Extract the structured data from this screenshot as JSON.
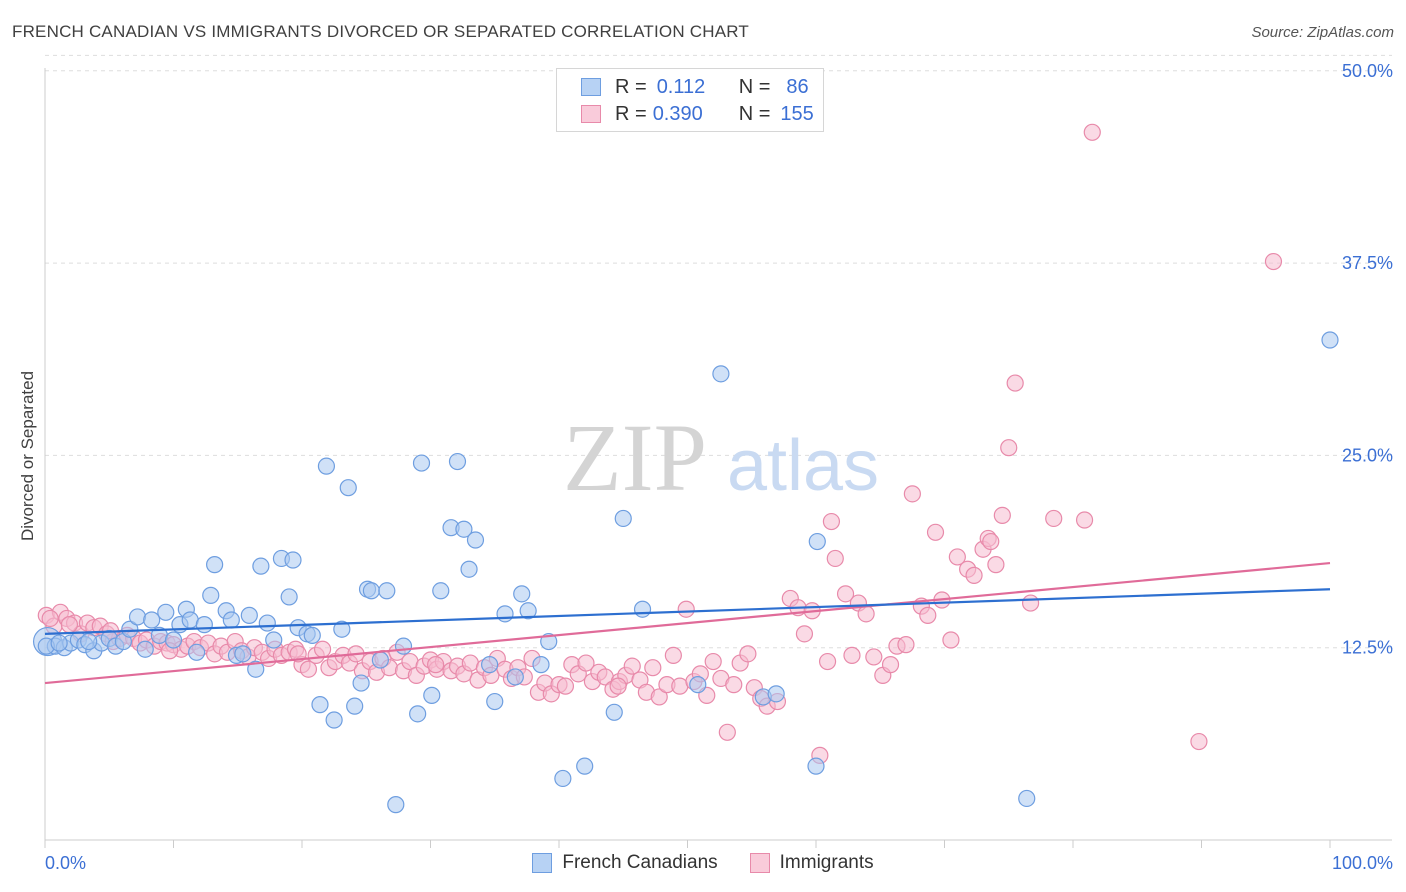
{
  "title": "FRENCH CANADIAN VS IMMIGRANTS DIVORCED OR SEPARATED CORRELATION CHART",
  "source": "Source: ZipAtlas.com",
  "watermark": {
    "zip": "ZIP",
    "atlas": "atlas"
  },
  "legend": {
    "rows": [
      {
        "r_label": "R =",
        "r_value": "0.112",
        "n_label": "N =",
        "n_value": "86"
      },
      {
        "r_label": "R =",
        "r_value": "0.390",
        "n_label": "N =",
        "n_value": "155"
      }
    ]
  },
  "bottom_legend": [
    "French Canadians",
    "Immigrants"
  ],
  "colors": {
    "blue_fill": "#a9c8f0",
    "blue_stroke": "#6e9ee0",
    "blue_line": "#2d6fd0",
    "pink_fill": "#f6bcd0",
    "pink_stroke": "#e88aaa",
    "pink_line": "#e06b99",
    "accent_text": "#3b6fd4",
    "grid": "#dddddd"
  },
  "chart_data": {
    "type": "scatter",
    "title": "FRENCH CANADIAN VS IMMIGRANTS DIVORCED OR SEPARATED CORRELATION CHART",
    "xlabel": "",
    "ylabel": "Divorced or Separated",
    "xlim": [
      0,
      100
    ],
    "ylim": [
      0,
      52
    ],
    "x_tick_labels": [
      "0.0%",
      "100.0%"
    ],
    "y_ticks": [
      12.5,
      25.0,
      37.5,
      50.0
    ],
    "y_tick_labels": [
      "12.5%",
      "25.0%",
      "37.5%",
      "50.0%"
    ],
    "grid": true,
    "legend_position": "top-center",
    "series": [
      {
        "name": "French Canadians",
        "r": 0.112,
        "n": 86,
        "trend": {
          "x": [
            0,
            100
          ],
          "y": [
            13.4,
            16.3
          ]
        },
        "points": [
          [
            0.2,
            12.9
          ],
          [
            0.8,
            12.6
          ],
          [
            1.5,
            12.5
          ],
          [
            2.0,
            12.8
          ],
          [
            2.6,
            13.0
          ],
          [
            3.1,
            12.7
          ],
          [
            3.8,
            12.3
          ],
          [
            4.4,
            12.8
          ],
          [
            5.0,
            13.1
          ],
          [
            5.5,
            12.6
          ],
          [
            6.1,
            12.9
          ],
          [
            6.6,
            13.7
          ],
          [
            7.2,
            14.5
          ],
          [
            7.8,
            12.4
          ],
          [
            8.3,
            14.3
          ],
          [
            8.9,
            13.3
          ],
          [
            9.4,
            14.8
          ],
          [
            10.0,
            13.0
          ],
          [
            10.5,
            14.0
          ],
          [
            11.0,
            15.0
          ],
          [
            11.3,
            14.3
          ],
          [
            11.8,
            12.2
          ],
          [
            12.4,
            14.0
          ],
          [
            12.9,
            15.9
          ],
          [
            13.2,
            17.9
          ],
          [
            14.1,
            14.9
          ],
          [
            14.5,
            14.3
          ],
          [
            14.9,
            12.0
          ],
          [
            15.4,
            12.1
          ],
          [
            15.9,
            14.6
          ],
          [
            16.4,
            11.1
          ],
          [
            16.8,
            17.8
          ],
          [
            17.3,
            14.1
          ],
          [
            17.8,
            13.0
          ],
          [
            18.4,
            18.3
          ],
          [
            19.0,
            15.8
          ],
          [
            19.3,
            18.2
          ],
          [
            19.7,
            13.8
          ],
          [
            20.4,
            13.4
          ],
          [
            20.8,
            13.3
          ],
          [
            21.4,
            8.8
          ],
          [
            21.9,
            24.3
          ],
          [
            22.5,
            7.8
          ],
          [
            23.1,
            13.7
          ],
          [
            23.6,
            22.9
          ],
          [
            24.1,
            8.7
          ],
          [
            24.6,
            10.2
          ],
          [
            25.1,
            16.3
          ],
          [
            25.4,
            16.2
          ],
          [
            26.1,
            11.7
          ],
          [
            26.6,
            16.2
          ],
          [
            27.3,
            2.3
          ],
          [
            27.9,
            12.6
          ],
          [
            29.0,
            8.2
          ],
          [
            29.3,
            24.5
          ],
          [
            30.1,
            9.4
          ],
          [
            30.8,
            16.2
          ],
          [
            31.6,
            20.3
          ],
          [
            32.1,
            24.6
          ],
          [
            32.6,
            20.2
          ],
          [
            33.0,
            17.6
          ],
          [
            33.5,
            19.5
          ],
          [
            34.6,
            11.4
          ],
          [
            35.0,
            9.0
          ],
          [
            35.8,
            14.7
          ],
          [
            36.6,
            10.6
          ],
          [
            37.1,
            16.0
          ],
          [
            37.6,
            14.9
          ],
          [
            38.6,
            11.4
          ],
          [
            39.2,
            12.9
          ],
          [
            40.3,
            4.0
          ],
          [
            42.0,
            4.8
          ],
          [
            44.3,
            8.3
          ],
          [
            45.0,
            20.9
          ],
          [
            46.5,
            15.0
          ],
          [
            50.8,
            10.1
          ],
          [
            52.6,
            30.3
          ],
          [
            55.9,
            9.3
          ],
          [
            56.9,
            9.5
          ],
          [
            60.0,
            4.8
          ],
          [
            60.1,
            19.4
          ],
          [
            76.4,
            2.7
          ],
          [
            100.0,
            32.5
          ],
          [
            0.1,
            12.6
          ],
          [
            1.1,
            12.8
          ],
          [
            3.4,
            12.9
          ]
        ]
      },
      {
        "name": "Immigrants",
        "r": 0.39,
        "n": 155,
        "trend": {
          "x": [
            0,
            100
          ],
          "y": [
            10.2,
            18.0
          ]
        },
        "points": [
          [
            0.1,
            14.6
          ],
          [
            0.7,
            13.9
          ],
          [
            1.2,
            14.8
          ],
          [
            1.7,
            14.4
          ],
          [
            2.3,
            14.1
          ],
          [
            2.8,
            13.4
          ],
          [
            3.3,
            14.1
          ],
          [
            3.8,
            13.8
          ],
          [
            4.3,
            13.9
          ],
          [
            4.8,
            13.4
          ],
          [
            5.3,
            12.9
          ],
          [
            5.8,
            13.1
          ],
          [
            6.4,
            13.3
          ],
          [
            6.9,
            13.1
          ],
          [
            7.4,
            12.8
          ],
          [
            7.9,
            13.0
          ],
          [
            8.5,
            12.6
          ],
          [
            9.0,
            12.9
          ],
          [
            9.5,
            12.8
          ],
          [
            10.0,
            12.7
          ],
          [
            10.6,
            12.4
          ],
          [
            11.1,
            12.6
          ],
          [
            11.6,
            12.9
          ],
          [
            12.1,
            12.5
          ],
          [
            12.7,
            12.8
          ],
          [
            13.2,
            12.1
          ],
          [
            13.7,
            12.6
          ],
          [
            14.2,
            12.2
          ],
          [
            14.8,
            12.9
          ],
          [
            15.3,
            12.3
          ],
          [
            15.8,
            11.9
          ],
          [
            16.3,
            12.5
          ],
          [
            16.9,
            12.2
          ],
          [
            17.4,
            11.8
          ],
          [
            17.9,
            12.4
          ],
          [
            18.4,
            12.0
          ],
          [
            19.0,
            12.2
          ],
          [
            19.5,
            12.4
          ],
          [
            20.0,
            11.4
          ],
          [
            20.5,
            11.1
          ],
          [
            21.1,
            12.0
          ],
          [
            21.6,
            12.4
          ],
          [
            22.1,
            11.2
          ],
          [
            22.6,
            11.6
          ],
          [
            23.2,
            12.0
          ],
          [
            23.7,
            11.5
          ],
          [
            24.2,
            12.1
          ],
          [
            24.7,
            11.0
          ],
          [
            25.3,
            11.6
          ],
          [
            25.8,
            10.9
          ],
          [
            26.3,
            11.8
          ],
          [
            26.8,
            11.2
          ],
          [
            27.4,
            12.2
          ],
          [
            27.9,
            11.0
          ],
          [
            28.4,
            11.6
          ],
          [
            28.9,
            10.7
          ],
          [
            29.5,
            11.3
          ],
          [
            30.0,
            11.7
          ],
          [
            30.5,
            11.1
          ],
          [
            31.0,
            11.6
          ],
          [
            31.6,
            11.0
          ],
          [
            32.1,
            11.3
          ],
          [
            32.6,
            10.8
          ],
          [
            33.1,
            11.5
          ],
          [
            33.7,
            10.4
          ],
          [
            34.2,
            11.2
          ],
          [
            34.7,
            10.7
          ],
          [
            35.2,
            11.8
          ],
          [
            35.8,
            11.1
          ],
          [
            36.3,
            10.5
          ],
          [
            36.8,
            11.2
          ],
          [
            37.3,
            10.6
          ],
          [
            37.9,
            11.8
          ],
          [
            38.4,
            9.6
          ],
          [
            38.9,
            10.2
          ],
          [
            39.4,
            9.5
          ],
          [
            40.0,
            10.1
          ],
          [
            40.5,
            10.0
          ],
          [
            41.0,
            11.4
          ],
          [
            41.5,
            10.8
          ],
          [
            42.1,
            11.5
          ],
          [
            42.6,
            10.3
          ],
          [
            43.1,
            10.9
          ],
          [
            43.6,
            10.6
          ],
          [
            44.2,
            9.8
          ],
          [
            44.7,
            10.3
          ],
          [
            45.2,
            10.7
          ],
          [
            45.7,
            11.3
          ],
          [
            46.3,
            10.4
          ],
          [
            46.8,
            9.6
          ],
          [
            47.3,
            11.2
          ],
          [
            47.8,
            9.3
          ],
          [
            48.4,
            10.1
          ],
          [
            48.9,
            12.0
          ],
          [
            49.4,
            10.0
          ],
          [
            49.9,
            15.0
          ],
          [
            50.5,
            10.3
          ],
          [
            51.0,
            10.8
          ],
          [
            51.5,
            9.4
          ],
          [
            52.0,
            11.6
          ],
          [
            52.6,
            10.5
          ],
          [
            53.1,
            7.0
          ],
          [
            53.6,
            10.1
          ],
          [
            54.1,
            11.5
          ],
          [
            54.7,
            12.1
          ],
          [
            55.2,
            9.9
          ],
          [
            55.7,
            9.2
          ],
          [
            56.2,
            8.7
          ],
          [
            57.0,
            9.0
          ],
          [
            58.0,
            15.7
          ],
          [
            58.6,
            15.1
          ],
          [
            59.1,
            13.4
          ],
          [
            59.7,
            14.9
          ],
          [
            60.3,
            5.5
          ],
          [
            60.9,
            11.6
          ],
          [
            61.2,
            20.7
          ],
          [
            61.5,
            18.3
          ],
          [
            62.3,
            16.0
          ],
          [
            62.8,
            12.0
          ],
          [
            63.3,
            15.4
          ],
          [
            63.9,
            14.7
          ],
          [
            64.5,
            11.9
          ],
          [
            65.2,
            10.7
          ],
          [
            65.8,
            11.4
          ],
          [
            66.3,
            12.6
          ],
          [
            67.0,
            12.7
          ],
          [
            67.5,
            22.5
          ],
          [
            68.2,
            15.2
          ],
          [
            68.7,
            14.6
          ],
          [
            69.3,
            20.0
          ],
          [
            69.8,
            15.6
          ],
          [
            70.5,
            13.0
          ],
          [
            71.0,
            18.4
          ],
          [
            71.8,
            17.6
          ],
          [
            72.3,
            17.2
          ],
          [
            73.0,
            18.9
          ],
          [
            73.4,
            19.6
          ],
          [
            73.6,
            19.4
          ],
          [
            74.0,
            17.9
          ],
          [
            74.5,
            21.1
          ],
          [
            75.0,
            25.5
          ],
          [
            75.5,
            29.7
          ],
          [
            76.7,
            15.4
          ],
          [
            78.5,
            20.9
          ],
          [
            80.9,
            20.8
          ],
          [
            81.5,
            46.0
          ],
          [
            89.8,
            6.4
          ],
          [
            95.6,
            37.6
          ],
          [
            0.4,
            14.4
          ],
          [
            1.9,
            14.0
          ],
          [
            5.1,
            13.6
          ],
          [
            9.7,
            12.3
          ],
          [
            19.7,
            12.1
          ],
          [
            30.4,
            11.4
          ],
          [
            44.6,
            10.0
          ]
        ]
      }
    ]
  }
}
